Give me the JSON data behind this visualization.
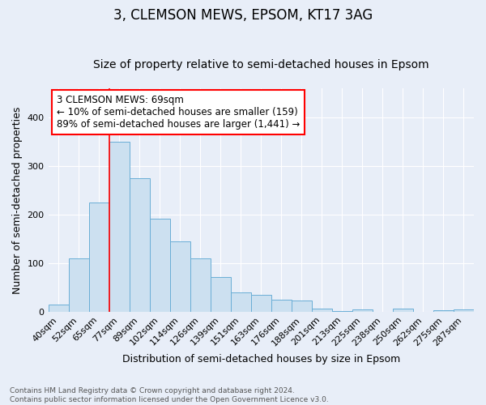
{
  "title": "3, CLEMSON MEWS, EPSOM, KT17 3AG",
  "subtitle": "Size of property relative to semi-detached houses in Epsom",
  "xlabel": "Distribution of semi-detached houses by size in Epsom",
  "ylabel": "Number of semi-detached properties",
  "footnote1": "Contains HM Land Registry data © Crown copyright and database right 2024.",
  "footnote2": "Contains public sector information licensed under the Open Government Licence v3.0.",
  "bar_labels": [
    "40sqm",
    "52sqm",
    "65sqm",
    "77sqm",
    "89sqm",
    "102sqm",
    "114sqm",
    "126sqm",
    "139sqm",
    "151sqm",
    "163sqm",
    "176sqm",
    "188sqm",
    "201sqm",
    "213sqm",
    "225sqm",
    "238sqm",
    "250sqm",
    "262sqm",
    "275sqm",
    "287sqm"
  ],
  "bar_values": [
    14,
    109,
    225,
    350,
    275,
    192,
    145,
    109,
    72,
    40,
    35,
    25,
    23,
    7,
    2,
    4,
    0,
    6,
    0,
    3,
    4
  ],
  "bar_color": "#cce0f0",
  "bar_edge_color": "#6aaed6",
  "annotation_text": "3 CLEMSON MEWS: 69sqm\n← 10% of semi-detached houses are smaller (159)\n89% of semi-detached houses are larger (1,441) →",
  "annotation_box_color": "white",
  "annotation_box_edge": "red",
  "redline_x": 2.5,
  "ylim": [
    0,
    460
  ],
  "background_color": "#e8eef8",
  "plot_background": "#e8eef8",
  "grid_color": "white",
  "title_fontsize": 12,
  "subtitle_fontsize": 10,
  "axis_label_fontsize": 9,
  "tick_fontsize": 8,
  "annotation_fontsize": 8.5,
  "ylabel_fontsize": 9
}
